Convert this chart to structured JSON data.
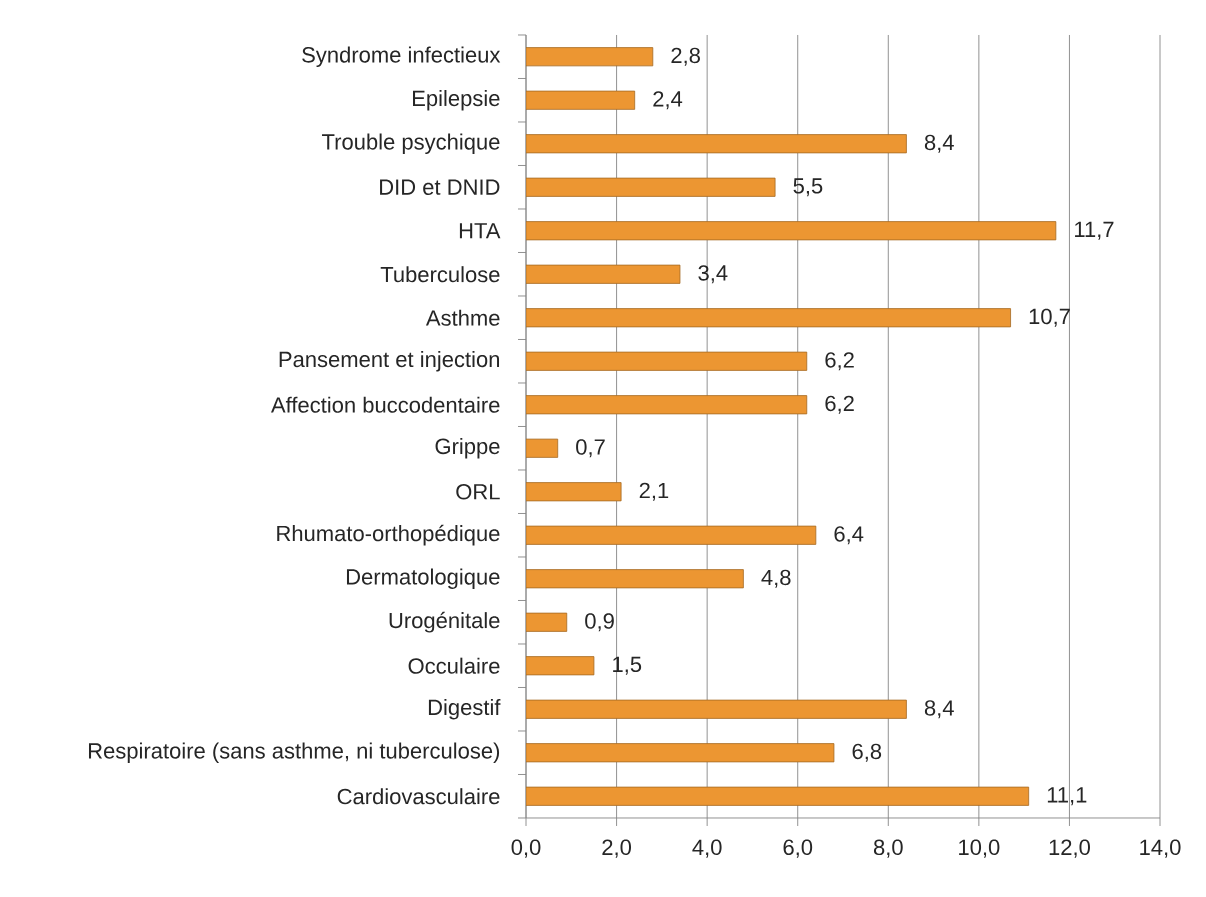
{
  "chart_data": {
    "type": "bar",
    "orientation": "horizontal",
    "categories": [
      "Syndrome infectieux",
      "Epilepsie",
      "Trouble psychique",
      "DID et DNID",
      "HTA",
      "Tuberculose",
      "Asthme",
      "Pansement et injection",
      "Affection buccodentaire",
      "Grippe",
      "ORL",
      "Rhumato-orthopédique",
      "Dermatologique",
      "Urogénitale",
      "Occulaire",
      "Digestif",
      "Respiratoire (sans asthme, ni tuberculose)",
      "Cardiovasculaire"
    ],
    "values": [
      2.8,
      2.4,
      8.4,
      5.5,
      11.7,
      3.4,
      10.7,
      6.2,
      6.2,
      0.7,
      2.1,
      6.4,
      4.8,
      0.9,
      1.5,
      8.4,
      6.8,
      11.1
    ],
    "value_labels": [
      "2,8",
      "2,4",
      "8,4",
      "5,5",
      "11,7",
      "3,4",
      "10,7",
      "6,2",
      "6,2",
      "0,7",
      "2,1",
      "6,4",
      "4,8",
      "0,9",
      "1,5",
      "8,4",
      "6,8",
      "11,1"
    ],
    "color": "#ec9632",
    "xlim": [
      0,
      14
    ],
    "xticks": [
      {
        "value": 0,
        "label": "0,0"
      },
      {
        "value": 2,
        "label": "2,0"
      },
      {
        "value": 4,
        "label": "4,0"
      },
      {
        "value": 6,
        "label": "6,0"
      },
      {
        "value": 8,
        "label": "8,0"
      },
      {
        "value": 10,
        "label": "10,0"
      },
      {
        "value": 12,
        "label": "12,0"
      },
      {
        "value": 14,
        "label": "14,0"
      }
    ],
    "grid": "x"
  }
}
